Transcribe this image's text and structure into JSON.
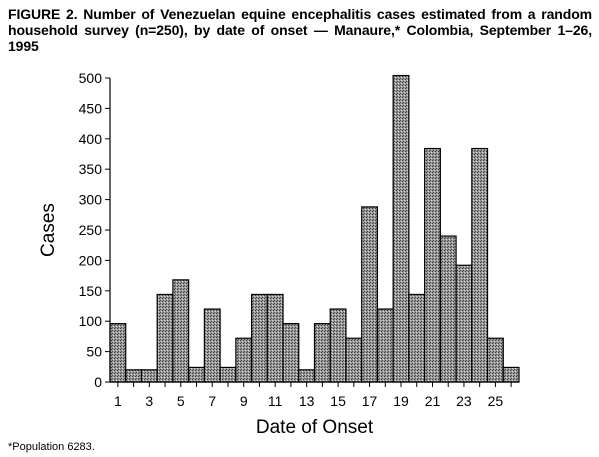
{
  "figure": {
    "title": "FIGURE 2. Number of Venezuelan equine encephalitis cases estimated from a random household survey (n=250), by date of onset — Manaure,* Colombia, September 1–26, 1995",
    "footnote": "*Population 6283."
  },
  "chart_data": {
    "type": "bar",
    "title": "FIGURE 2. Number of Venezuelan equine encephalitis cases estimated from a random household survey (n=250), by date of onset — Manaure,* Colombia, September 1–26, 1995",
    "xlabel": "Date of Onset",
    "ylabel": "Cases",
    "ylim": [
      0,
      500
    ],
    "yticks": [
      0,
      50,
      100,
      150,
      200,
      250,
      300,
      350,
      400,
      450,
      500
    ],
    "xtick_labels": [
      "1",
      "3",
      "5",
      "7",
      "9",
      "11",
      "13",
      "15",
      "17",
      "19",
      "21",
      "23",
      "25"
    ],
    "categories": [
      "1",
      "2",
      "3",
      "4",
      "5",
      "6",
      "7",
      "8",
      "9",
      "10",
      "11",
      "12",
      "13",
      "14",
      "15",
      "16",
      "17",
      "18",
      "19",
      "20",
      "21",
      "22",
      "23",
      "24",
      "25",
      "26"
    ],
    "values": [
      96,
      20,
      20,
      144,
      168,
      24,
      120,
      24,
      72,
      144,
      144,
      96,
      20,
      96,
      120,
      72,
      288,
      120,
      504,
      144,
      384,
      240,
      192,
      384,
      72,
      24
    ],
    "grid": false,
    "legend": "none",
    "bar_fill": "#8c8c8c",
    "bar_stroke": "#000000"
  }
}
